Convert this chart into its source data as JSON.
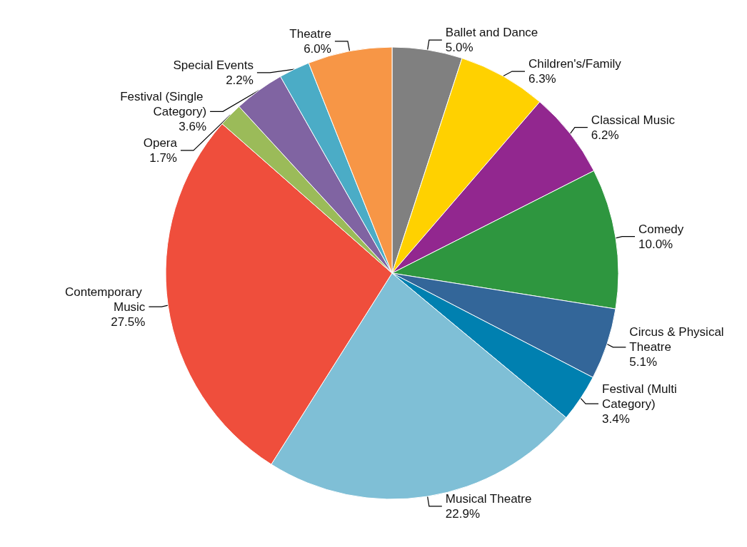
{
  "chart_data": {
    "type": "pie",
    "categories": [
      "Ballet and Dance",
      "Children's/Family",
      "Classical Music",
      "Comedy",
      "Circus & Physical Theatre",
      "Festival (Multi Category)",
      "Musical Theatre",
      "Contemporary Music",
      "Opera",
      "Festival (Single Category)",
      "Special Events",
      "Theatre"
    ],
    "values": [
      5.0,
      6.3,
      6.2,
      10.0,
      5.1,
      3.4,
      22.9,
      27.5,
      1.7,
      3.6,
      2.2,
      6.0
    ],
    "value_labels": [
      "5.0%",
      "6.3%",
      "6.2%",
      "10.0%",
      "5.1%",
      "3.4%",
      "22.9%",
      "27.5%",
      "1.7%",
      "3.6%",
      "2.2%",
      "6.0%"
    ],
    "colors": [
      "#808080",
      "#ffd100",
      "#92278f",
      "#2e963f",
      "#336699",
      "#0080b0",
      "#7fbfd6",
      "#ef4e3c",
      "#9bbb59",
      "#8064a2",
      "#4bacc6",
      "#f79646"
    ],
    "legend": false
  }
}
